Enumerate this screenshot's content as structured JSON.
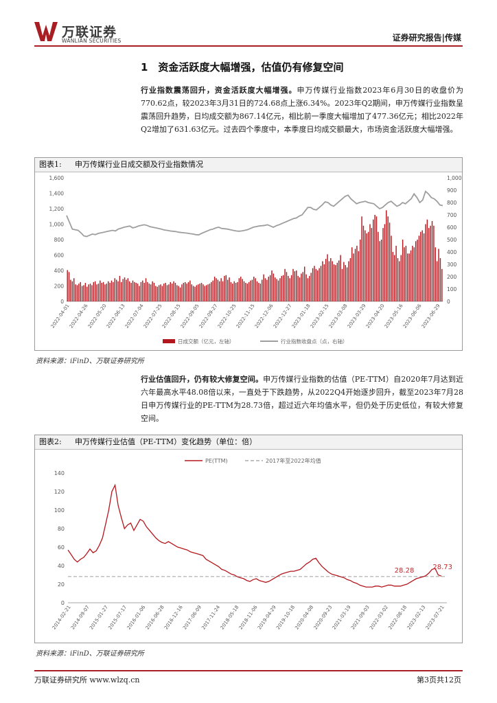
{
  "header": {
    "logo_cn": "万联证券",
    "logo_en": "WANLIAN SECURITIES",
    "tag": "证券研究报告|传媒"
  },
  "section": {
    "title": "1　资金活跃度大幅增强，估值仍有修复空间"
  },
  "para1": {
    "bold": "行业指数震荡回升，资金活跃度大幅增强。",
    "text": "申万传媒行业指数2023年6月30日的收盘价为770.62点，较2023年3月31日的724.68点上涨6.34%。2023年Q2期间，申万传媒行业指数呈震荡回升趋势，日均成交额为867.14亿元，相比前一季度大幅增加了477.36亿元；相比2022年Q2增加了631.63亿元。过去四个季度中，本季度日均成交额最大，市场资金活跃度大幅增强。"
  },
  "para2": {
    "bold": "行业估值回升，仍有较大修复空间。",
    "text": "申万传媒行业指数的估值（PE-TTM）自2020年7月达到近六年最高水平48.08倍以来，一直处于下跌趋势，从2022Q4开始逐步回升，截至2023年7月28日申万传媒行业的PE-TTM为28.73倍，超过近六年均值水平，但仍处于历史低位，有较大修复空间。"
  },
  "figure1": {
    "label": "图表1:",
    "title": "申万传媒行业日成交额及行业指数情况",
    "source": "资料来源：iFinD、万联证券研究所"
  },
  "figure2": {
    "label": "图表2:",
    "title": "申万传媒行业估值（PE-TTM）变化趋势（单位：倍）",
    "source": "资料来源：iFinD、万联证券研究所"
  },
  "chart_data": [
    {
      "type": "bar",
      "title": "申万传媒行业日成交额及行业指数情况",
      "legend": [
        "日成交额（亿元，左轴）",
        "行业指数收盘点（点，右轴）"
      ],
      "legend_placement": "bottom",
      "left_ylim": [
        0,
        1600
      ],
      "left_ticks": [
        "0",
        "200",
        "400",
        "600",
        "800",
        "1,000",
        "1,200",
        "1,400",
        "1,600"
      ],
      "right_ylim": [
        0,
        1000
      ],
      "right_ticks": [
        "0",
        "100",
        "200",
        "300",
        "400",
        "500",
        "600",
        "700",
        "800",
        "900",
        "1,000"
      ],
      "x_tick_labels": [
        "2022-04-01",
        "2022-04-26",
        "2022-05-20",
        "2022-06-13",
        "2022-07-04",
        "2022-07-25",
        "2022-08-15",
        "2022-09-05",
        "2022-09-27",
        "2022-10-25",
        "2022-11-15",
        "2022-12-06",
        "2022-12-27",
        "2023-01-18",
        "2023-02-15",
        "2023-03-08",
        "2023-03-29",
        "2023-04-20",
        "2023-05-16",
        "2023-06-06",
        "2023-06-29"
      ],
      "volume_series": [
        405,
        380,
        280,
        260,
        300,
        220,
        210,
        230,
        250,
        200,
        210,
        240,
        190,
        220,
        230,
        210,
        250,
        260,
        220,
        230,
        270,
        240,
        250,
        220,
        230,
        260,
        240,
        270,
        250,
        300,
        280,
        260,
        330,
        250,
        290,
        310,
        280,
        300,
        260,
        240,
        270,
        250,
        240,
        230,
        200,
        250,
        270,
        240,
        300,
        250,
        230,
        220,
        260,
        240,
        200,
        190,
        210,
        220,
        200,
        230,
        240,
        210,
        220,
        250,
        230,
        260,
        240,
        210,
        200,
        180,
        220,
        240,
        250,
        230,
        250,
        270,
        220,
        200,
        190,
        210,
        220,
        230,
        240,
        220,
        200,
        210,
        220,
        230,
        250,
        270,
        320,
        300,
        280,
        260,
        300,
        260,
        330,
        340,
        280,
        310,
        250,
        230,
        260,
        240,
        250,
        300,
        320,
        290,
        260,
        240,
        230,
        250,
        270,
        280,
        320,
        300,
        260,
        240,
        230,
        280,
        350,
        300,
        280,
        320,
        340,
        400,
        360,
        310,
        290,
        270,
        300,
        330,
        340,
        420,
        380,
        330,
        300,
        340,
        420,
        390,
        400,
        330,
        310,
        360,
        380,
        450,
        350,
        300,
        330,
        370,
        430,
        460,
        420,
        400,
        430,
        460,
        520,
        480,
        550,
        610,
        520,
        560,
        520,
        480,
        470,
        500,
        530,
        600,
        420,
        510,
        470,
        440,
        520,
        560,
        700,
        620,
        680,
        720,
        650,
        800,
        1100,
        980,
        920,
        880,
        900,
        1000,
        950,
        1060,
        1120,
        1100,
        900,
        780,
        800,
        950,
        1000,
        1180,
        1100,
        1020,
        850,
        640,
        600,
        720,
        560,
        520,
        600,
        800,
        700,
        720,
        620,
        620,
        660,
        720,
        700,
        780,
        800,
        850,
        900,
        920,
        880,
        1000,
        1060,
        950,
        980,
        1040,
        980,
        700,
        520,
        680,
        560,
        420
      ],
      "index_series": [
        695,
        640,
        585,
        580,
        575,
        555,
        530,
        525,
        535,
        545,
        540,
        550,
        555,
        560,
        565,
        570,
        575,
        570,
        585,
        592,
        600,
        605,
        610,
        595,
        600,
        610,
        615,
        620,
        615,
        605,
        600,
        595,
        590,
        585,
        578,
        575,
        570,
        568,
        565,
        560,
        557,
        555,
        552,
        548,
        545,
        540,
        538,
        550,
        560,
        570,
        580,
        585,
        595,
        600,
        590,
        588,
        585,
        580,
        575,
        570,
        568,
        570,
        575,
        580,
        590,
        600,
        605,
        610,
        612,
        615,
        620,
        610,
        600,
        612,
        620,
        630,
        640,
        650,
        660,
        670,
        675,
        690,
        700,
        730,
        760,
        760,
        745,
        740,
        760,
        780,
        805,
        800,
        780,
        770,
        790,
        810,
        830,
        850,
        860,
        830,
        810,
        790,
        800,
        805,
        810,
        800,
        795,
        790,
        770,
        750,
        760,
        780,
        800,
        810,
        790,
        770,
        780,
        800,
        790,
        810,
        830,
        870,
        840,
        800,
        820,
        890,
        870,
        840,
        830,
        810,
        780,
        775
      ]
    },
    {
      "type": "line",
      "title": "申万传媒行业估值（PE-TTM）变化趋势（单位：倍）",
      "series_names": [
        "PE(TTM)",
        "2017年至2022年均值"
      ],
      "legend_placement": "top",
      "ylim": [
        0,
        140
      ],
      "y_ticks": [
        "0",
        "20",
        "40",
        "60",
        "80",
        "100",
        "120",
        "140"
      ],
      "mean_value": 28.28,
      "mean_label": "28.28",
      "end_label": "28.73",
      "x_tick_labels": [
        "2014-02-21",
        "2014-09-07",
        "2015-01-27",
        "2015-07-17",
        "2016-01-06",
        "2016-06-28",
        "2016-12-16",
        "2017-06-09",
        "2017-11-24",
        "2018-05-18",
        "2018-11-06",
        "2019-04-29",
        "2019-10-18",
        "2020-04-08",
        "2020-09-23",
        "2021-03-19",
        "2021-09-03",
        "2022-03-02",
        "2022-08-18",
        "2023-02-13",
        "2023-07-21"
      ],
      "pe_series": [
        57,
        52,
        47,
        44,
        47,
        49,
        53,
        58,
        54,
        56,
        62,
        70,
        85,
        100,
        120,
        127,
        105,
        92,
        80,
        84,
        86,
        78,
        84,
        90,
        88,
        82,
        78,
        74,
        70,
        67,
        65,
        64,
        66,
        64,
        62,
        60,
        59,
        58,
        57,
        55,
        54,
        53,
        52,
        51,
        47,
        45,
        43,
        41,
        39,
        36,
        35,
        33,
        31,
        30,
        28,
        27,
        26,
        24,
        23,
        25,
        26,
        24,
        23,
        22,
        23,
        25,
        27,
        29,
        31,
        32,
        33,
        34,
        34,
        35,
        36,
        39,
        42,
        44,
        47,
        48,
        43,
        39,
        36,
        33,
        31,
        30,
        29,
        28,
        27,
        25,
        24,
        22,
        21,
        19,
        18,
        17,
        17,
        17,
        18,
        18,
        17,
        18,
        19,
        19,
        18,
        18,
        18,
        19,
        20,
        22,
        24,
        26,
        27,
        28,
        29,
        32,
        36,
        37,
        30,
        28.73
      ]
    }
  ],
  "footer": {
    "left": "万联证券研究所 www.wlzq.cn",
    "right": "第3页共12页"
  }
}
